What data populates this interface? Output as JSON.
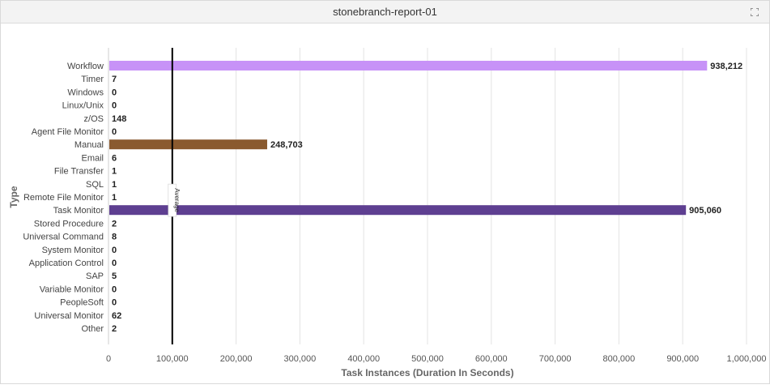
{
  "window": {
    "title": "stonebranch-report-01",
    "expand_icon": "expand-icon"
  },
  "chart_data": {
    "type": "bar",
    "orientation": "horizontal",
    "categories": [
      "Workflow",
      "Timer",
      "Windows",
      "Linux/Unix",
      "z/OS",
      "Agent File Monitor",
      "Manual",
      "Email",
      "File Transfer",
      "SQL",
      "Remote File Monitor",
      "Task Monitor",
      "Stored Procedure",
      "Universal Command",
      "System Monitor",
      "Application Control",
      "SAP",
      "Variable Monitor",
      "PeopleSoft",
      "Universal Monitor",
      "Other"
    ],
    "values": [
      938212,
      7,
      0,
      0,
      148,
      0,
      248703,
      6,
      1,
      1,
      1,
      905060,
      2,
      8,
      0,
      0,
      5,
      0,
      0,
      62,
      2
    ],
    "value_labels": [
      "938,212",
      "7",
      "0",
      "0",
      "148",
      "0",
      "248,703",
      "6",
      "1",
      "1",
      "1",
      "905,060",
      "2",
      "8",
      "0",
      "0",
      "5",
      "0",
      "0",
      "62",
      "2"
    ],
    "bar_colors": {
      "Workflow": "#c792f7",
      "Manual": "#8a5a2f",
      "Task Monitor": "#5e3f91"
    },
    "xlabel": "Task Instances (Duration In Seconds)",
    "ylabel": "Type",
    "xlim": [
      0,
      1000000
    ],
    "xticks": [
      0,
      100000,
      200000,
      300000,
      400000,
      500000,
      600000,
      700000,
      800000,
      900000,
      1000000
    ],
    "xtick_labels": [
      "0",
      "100,000",
      "200,000",
      "300,000",
      "400,000",
      "500,000",
      "600,000",
      "700,000",
      "800,000",
      "900,000",
      "1,000,000"
    ],
    "reference_line": {
      "value": 100000,
      "label": "Average"
    },
    "grid": "vertical"
  }
}
